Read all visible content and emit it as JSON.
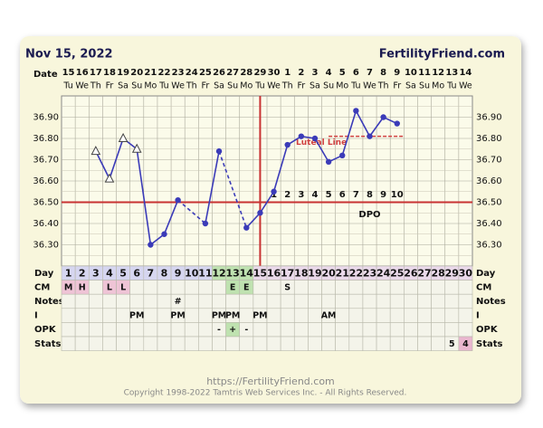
{
  "header": {
    "date": "Nov 15, 2022",
    "site": "FertilityFriend.com",
    "date_label": "Date"
  },
  "chart_data": {
    "type": "line",
    "day_label": "Day",
    "x": [
      1,
      2,
      3,
      4,
      5,
      6,
      7,
      8,
      9,
      10,
      11,
      12,
      13,
      14,
      15,
      16,
      17,
      18,
      19,
      20,
      21,
      22,
      23,
      24,
      25,
      26,
      27,
      28,
      29,
      30
    ],
    "dates": [
      "15",
      "16",
      "17",
      "18",
      "19",
      "20",
      "21",
      "22",
      "23",
      "24",
      "25",
      "26",
      "27",
      "28",
      "29",
      "30",
      "1",
      "2",
      "3",
      "4",
      "5",
      "6",
      "7",
      "8",
      "9",
      "10",
      "11",
      "12",
      "13",
      "14"
    ],
    "weekdays": [
      "Tu",
      "We",
      "Th",
      "Fr",
      "Sa",
      "Su",
      "Mo",
      "Tu",
      "We",
      "Th",
      "Fr",
      "Sa",
      "Su",
      "Mo",
      "Tu",
      "We",
      "Th",
      "Fr",
      "Sa",
      "Su",
      "Mo",
      "Tu",
      "We",
      "Th",
      "Fr",
      "Sa",
      "Su",
      "Mo",
      "Tu",
      "We"
    ],
    "values": [
      null,
      null,
      36.74,
      36.61,
      36.8,
      36.75,
      36.3,
      36.35,
      36.51,
      null,
      36.4,
      36.74,
      null,
      36.38,
      36.45,
      36.55,
      36.77,
      36.81,
      36.8,
      36.69,
      36.72,
      36.93,
      36.81,
      36.9,
      36.87,
      null,
      null,
      null,
      null,
      null
    ],
    "markers": [
      null,
      null,
      "triangle",
      "triangle",
      "triangle",
      "triangle",
      "circle",
      "circle",
      "circle",
      null,
      "circle",
      "circle",
      null,
      "circle",
      "circle",
      "circle",
      "circle",
      "circle",
      "circle",
      "circle",
      "circle",
      "circle",
      "circle",
      "circle",
      "circle",
      null,
      null,
      null,
      null,
      null
    ],
    "color": "#3b3bb8",
    "ylim": [
      36.2,
      37.0
    ],
    "yticks": [
      {
        "value": 36.3,
        "label": "36.30"
      },
      {
        "value": 36.4,
        "label": "36.40"
      },
      {
        "value": 36.5,
        "label": "36.50"
      },
      {
        "value": 36.6,
        "label": "36.60"
      },
      {
        "value": 36.7,
        "label": "36.70"
      },
      {
        "value": 36.8,
        "label": "36.80"
      },
      {
        "value": 36.9,
        "label": "36.90"
      }
    ],
    "grid": true,
    "minor_grid": true,
    "coverline": 36.5,
    "ovulation_day": 15,
    "luteal_line": {
      "value": 36.81,
      "label": "Luteal Line"
    },
    "dpo": {
      "labels": [
        1,
        2,
        3,
        4,
        5,
        6,
        7,
        8,
        9,
        10
      ],
      "title": "DPO"
    }
  },
  "table": {
    "rows": [
      {
        "label": "CM",
        "cells": [
          "M",
          "H",
          null,
          "L",
          "L",
          null,
          null,
          null,
          null,
          null,
          null,
          null,
          "E",
          "E",
          null,
          null,
          "S",
          null,
          null,
          null,
          null,
          null,
          null,
          null,
          null,
          null,
          null,
          null,
          null,
          null
        ]
      },
      {
        "label": "Notes",
        "cells": [
          null,
          null,
          null,
          null,
          null,
          null,
          null,
          null,
          "#",
          null,
          null,
          null,
          null,
          null,
          null,
          null,
          null,
          null,
          null,
          null,
          null,
          null,
          null,
          null,
          null,
          null,
          null,
          null,
          null,
          null
        ]
      },
      {
        "label": "I",
        "cells": [
          null,
          null,
          null,
          null,
          null,
          "PM",
          null,
          null,
          "PM",
          null,
          null,
          "PM",
          "PM",
          null,
          "PM",
          null,
          null,
          null,
          null,
          "AM",
          null,
          null,
          null,
          null,
          null,
          null,
          null,
          null,
          null,
          null
        ]
      },
      {
        "label": "OPK",
        "cells": [
          null,
          null,
          null,
          null,
          null,
          null,
          null,
          null,
          null,
          null,
          null,
          "-",
          "+",
          "-",
          null,
          null,
          null,
          null,
          null,
          null,
          null,
          null,
          null,
          null,
          null,
          null,
          null,
          null,
          null,
          null
        ]
      },
      {
        "label": "Stats",
        "cells": [
          null,
          null,
          null,
          null,
          null,
          null,
          null,
          null,
          null,
          null,
          null,
          null,
          null,
          null,
          null,
          null,
          null,
          null,
          null,
          null,
          null,
          null,
          null,
          null,
          null,
          null,
          null,
          null,
          "5",
          "4"
        ]
      }
    ]
  },
  "footer": {
    "url": "https://FertilityFriend.com",
    "copyright": "Copyright 1998-2022 Tamtris Web Services Inc. - All Rights Reserved."
  }
}
